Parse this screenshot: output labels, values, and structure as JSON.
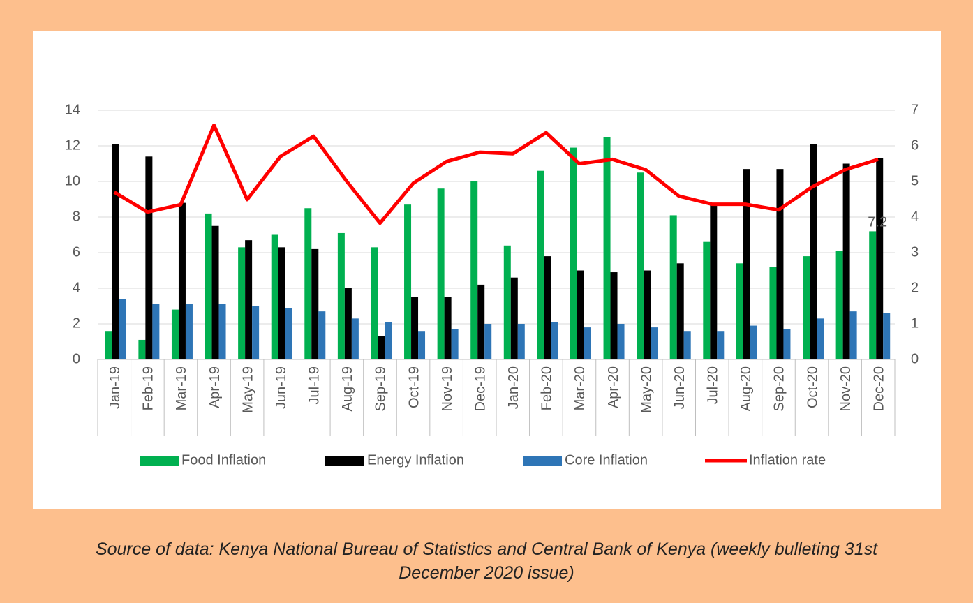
{
  "chart_data": {
    "type": "bar",
    "categories": [
      "Jan-19",
      "Feb-19",
      "Mar-19",
      "Apr-19",
      "May-19",
      "Jun-19",
      "Jul-19",
      "Aug-19",
      "Sep-19",
      "Oct-19",
      "Nov-19",
      "Dec-19",
      "Jan-20",
      "Feb-20",
      "Mar-20",
      "Apr-20",
      "May-20",
      "Jun-20",
      "Jul-20",
      "Aug-20",
      "Sep-20",
      "Oct-20",
      "Nov-20",
      "Dec-20"
    ],
    "series": [
      {
        "name": "Food Inflation",
        "color": "#00b050",
        "values": [
          1.6,
          1.1,
          2.8,
          8.2,
          6.3,
          7.0,
          8.5,
          7.1,
          6.3,
          8.7,
          9.6,
          10.0,
          6.4,
          10.6,
          11.9,
          12.5,
          10.5,
          8.1,
          6.6,
          5.4,
          5.2,
          5.8,
          6.1,
          7.2
        ]
      },
      {
        "name": "Energy Inflation",
        "color": "#000000",
        "values": [
          12.1,
          11.4,
          8.8,
          7.5,
          6.7,
          6.3,
          6.2,
          4.0,
          1.3,
          3.5,
          3.5,
          4.2,
          4.6,
          5.8,
          5.0,
          4.9,
          5.0,
          5.4,
          8.8,
          10.7,
          10.7,
          12.1,
          11.0,
          11.3
        ]
      },
      {
        "name": "Core Inflation",
        "color": "#2e75b6",
        "values": [
          3.4,
          3.1,
          3.1,
          3.1,
          3.0,
          2.9,
          2.7,
          2.3,
          2.1,
          1.6,
          1.7,
          2.0,
          2.0,
          2.1,
          1.8,
          2.0,
          1.8,
          1.6,
          1.6,
          1.9,
          1.7,
          2.3,
          2.7,
          2.6
        ]
      },
      {
        "name": "Inflation rate",
        "color": "#ff0000",
        "type": "line",
        "axis": "y2",
        "values": [
          4.7,
          4.14,
          4.35,
          6.58,
          4.49,
          5.7,
          6.27,
          5.0,
          3.83,
          4.95,
          5.56,
          5.82,
          5.78,
          6.37,
          5.5,
          5.62,
          5.33,
          4.59,
          4.36,
          4.36,
          4.2,
          4.84,
          5.33,
          5.62
        ]
      }
    ],
    "ylim": [
      0,
      14
    ],
    "yticks": [
      0,
      2,
      4,
      6,
      8,
      10,
      12,
      14
    ],
    "y2lim": [
      0,
      7
    ],
    "y2ticks": [
      0,
      1,
      2,
      3,
      4,
      5,
      6,
      7
    ],
    "grid": true,
    "legend": "bottom"
  },
  "source": "Source of data: Kenya National Bureau of Statistics and Central Bank of Kenya (weekly bulleting 31st December 2020 issue)"
}
